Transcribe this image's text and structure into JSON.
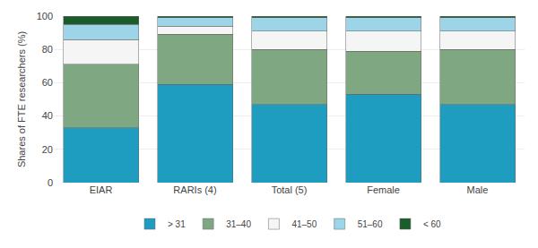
{
  "chart_data": {
    "type": "bar",
    "stacked": true,
    "categories": [
      "EIAR",
      "RARIs (4)",
      "Total (5)",
      "Female",
      "Male"
    ],
    "series": [
      {
        "name": "> 31",
        "color": "#1e9dc0",
        "values": [
          33,
          59,
          47,
          53,
          47
        ]
      },
      {
        "name": "31–40",
        "color": "#7fa882",
        "values": [
          38,
          30,
          33,
          26,
          33
        ]
      },
      {
        "name": "41–50",
        "color": "#f5f5f5",
        "values": [
          15,
          5,
          11,
          12,
          11
        ]
      },
      {
        "name": "51–60",
        "color": "#9dd4e8",
        "values": [
          9,
          5,
          8,
          8,
          8
        ]
      },
      {
        "name": "< 60",
        "color": "#1a5c2a",
        "values": [
          5,
          1,
          1,
          1,
          1
        ]
      }
    ],
    "ylabel": "Shares of FTE researchers (%)",
    "ylim": [
      0,
      100
    ],
    "yticks": [
      0,
      20,
      40,
      60,
      80,
      100
    ],
    "grid": true,
    "legend": "bottom"
  }
}
